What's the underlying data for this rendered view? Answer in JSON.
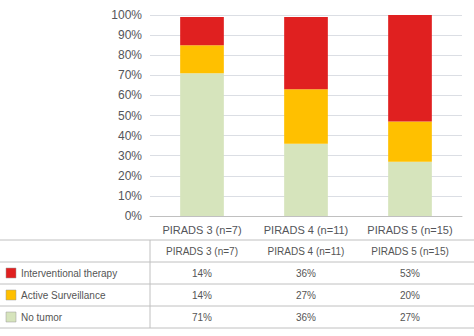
{
  "chart_data": {
    "type": "bar",
    "stacked": true,
    "categories": [
      "PIRADS 3 (n=7)",
      "PIRADS 4 (n=11)",
      "PIRADS 5 (n=15)"
    ],
    "series": [
      {
        "name": "No tumor",
        "color": "#d6e4bc",
        "values": [
          71,
          36,
          27
        ],
        "value_labels": [
          "71%",
          "36%",
          "27%"
        ]
      },
      {
        "name": "Active Surveillance",
        "color": "#ffc000",
        "values": [
          14,
          27,
          20
        ],
        "value_labels": [
          "14%",
          "27%",
          "20%"
        ]
      },
      {
        "name": "Interventional therapy",
        "color": "#e02020",
        "values": [
          14,
          36,
          53
        ],
        "value_labels": [
          "14%",
          "36%",
          "53%"
        ]
      }
    ],
    "ylim": [
      0,
      100
    ],
    "yticks": [
      {
        "value": 0,
        "label": "0%"
      },
      {
        "value": 10,
        "label": "10%"
      },
      {
        "value": 20,
        "label": "20%"
      },
      {
        "value": 30,
        "label": "30%"
      },
      {
        "value": 40,
        "label": "40%"
      },
      {
        "value": 50,
        "label": "50%"
      },
      {
        "value": 60,
        "label": "60%"
      },
      {
        "value": 70,
        "label": "70%"
      },
      {
        "value": 80,
        "label": "80%"
      },
      {
        "value": 90,
        "label": "90%"
      },
      {
        "value": 100,
        "label": "100%"
      }
    ],
    "grid": true
  }
}
